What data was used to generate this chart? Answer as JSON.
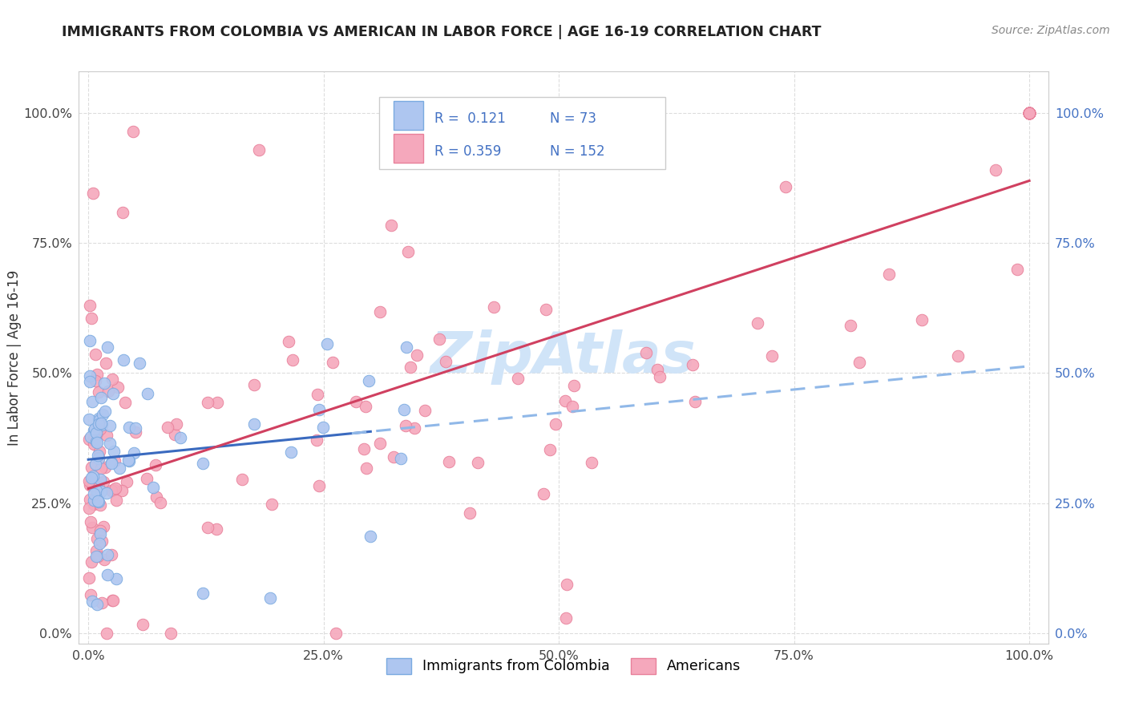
{
  "title": "IMMIGRANTS FROM COLOMBIA VS AMERICAN IN LABOR FORCE | AGE 16-19 CORRELATION CHART",
  "source": "Source: ZipAtlas.com",
  "ylabel": "In Labor Force | Age 16-19",
  "xlim": [
    -0.01,
    1.02
  ],
  "ylim": [
    -0.02,
    1.08
  ],
  "xticks": [
    0.0,
    0.25,
    0.5,
    0.75,
    1.0
  ],
  "yticks": [
    0.0,
    0.25,
    0.5,
    0.75,
    1.0
  ],
  "xtick_labels": [
    "0.0%",
    "25.0%",
    "50.0%",
    "75.0%",
    "100.0%"
  ],
  "ytick_labels_left": [
    "0.0%",
    "25.0%",
    "50.0%",
    "75.0%",
    "100.0%"
  ],
  "ytick_labels_right": [
    "0.0%",
    "25.0%",
    "50.0%",
    "75.0%",
    "100.0%"
  ],
  "colombia_color": "#aec6f0",
  "american_color": "#f5a8bc",
  "colombia_edge": "#7aaae0",
  "american_edge": "#e8809a",
  "trendline_colombia_color": "#3a6abf",
  "trendline_american_color": "#d04060",
  "trendline_dashed_color": "#90b8e8",
  "legend_R_colombia": "0.121",
  "legend_N_colombia": "73",
  "legend_R_american": "0.359",
  "legend_N_american": "152",
  "watermark": "ZipAtlas",
  "watermark_color": "#d0e4f8",
  "title_color": "#222222",
  "source_color": "#888888",
  "tick_color_left": "#444444",
  "tick_color_right": "#4472c4",
  "grid_color": "#dddddd"
}
